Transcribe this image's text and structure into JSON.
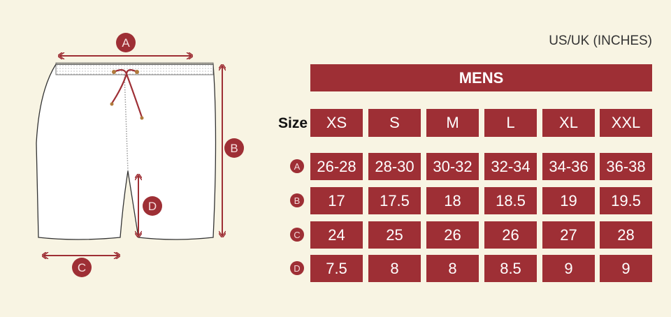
{
  "units": "US/UK (INCHES)",
  "section_title": "MENS",
  "size_label": "Size",
  "sizes": [
    "XS",
    "S",
    "M",
    "L",
    "XL",
    "XXL"
  ],
  "rows": [
    {
      "label": "A",
      "values": [
        "26-28",
        "28-30",
        "30-32",
        "32-34",
        "34-36",
        "36-38"
      ]
    },
    {
      "label": "B",
      "values": [
        "17",
        "17.5",
        "18",
        "18.5",
        "19",
        "19.5"
      ]
    },
    {
      "label": "C",
      "values": [
        "24",
        "25",
        "26",
        "26",
        "27",
        "28"
      ]
    },
    {
      "label": "D",
      "values": [
        "7.5",
        "8",
        "8",
        "8.5",
        "9",
        "9"
      ]
    }
  ],
  "diagram_labels": {
    "a": "A",
    "b": "B",
    "c": "C",
    "d": "D"
  },
  "colors": {
    "accent": "#9e2f35",
    "background": "#f8f4e3"
  }
}
